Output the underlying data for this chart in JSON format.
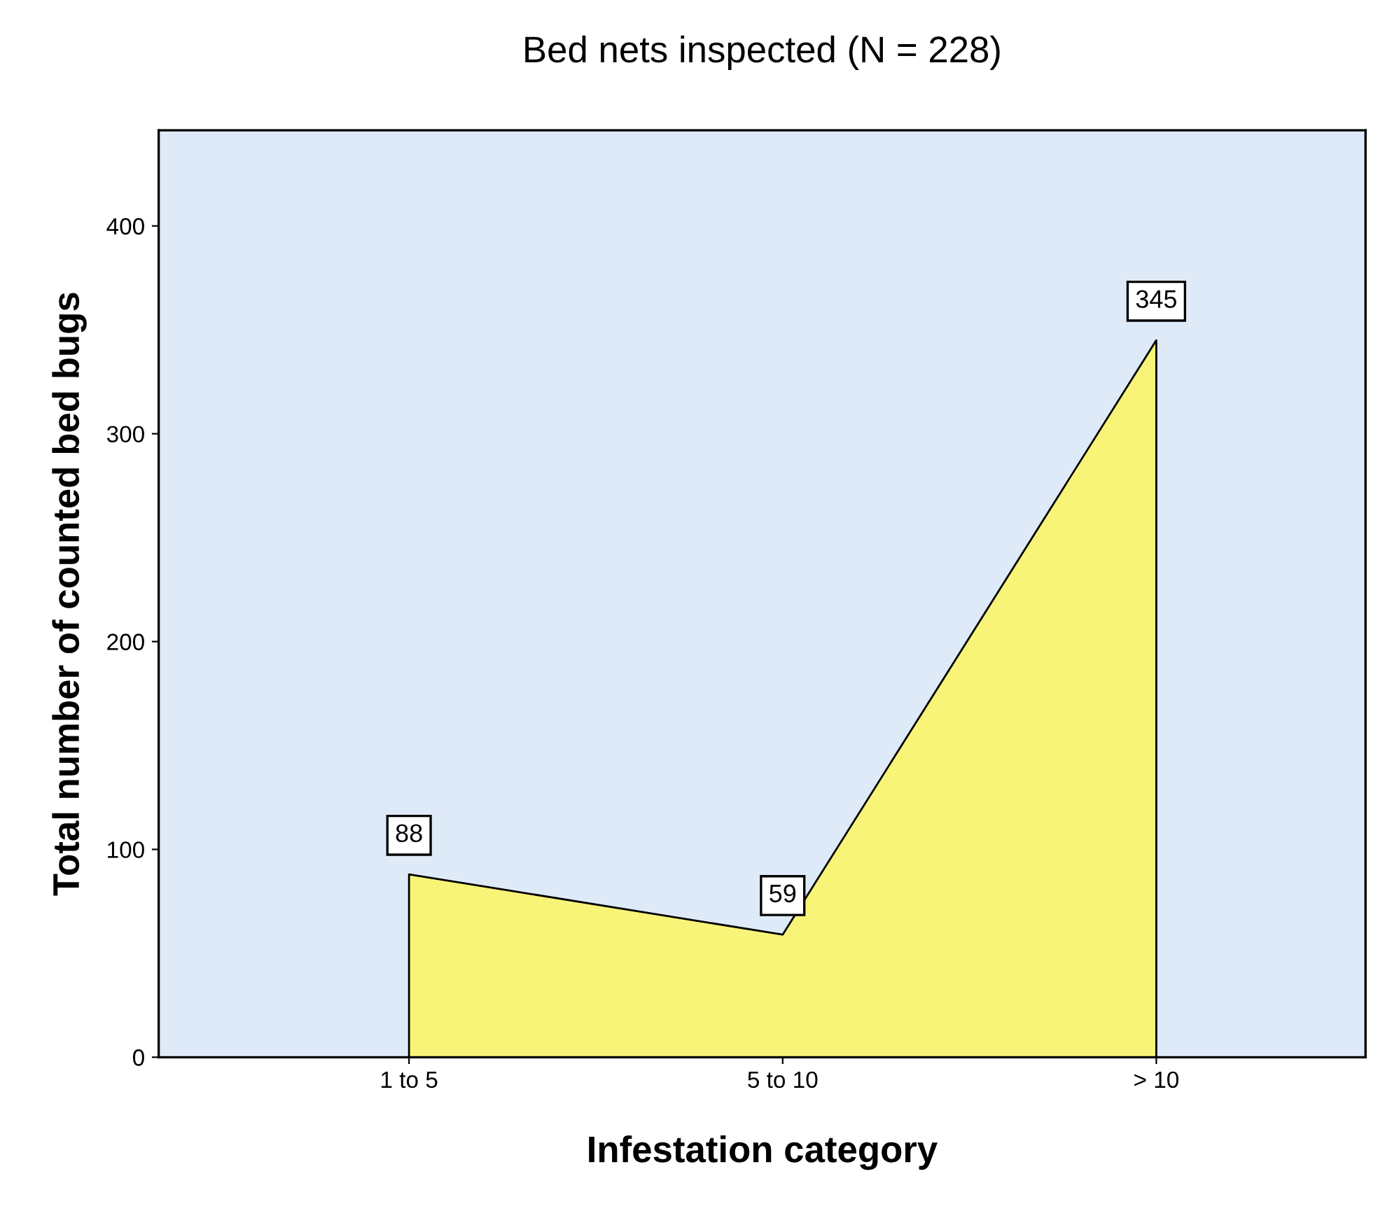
{
  "chart_data": {
    "type": "area",
    "title": "Bed nets inspected (N = 228)",
    "xlabel": "Infestation category",
    "ylabel": "Total number of counted bed bugs",
    "categories": [
      "1 to 5",
      "5 to 10",
      "> 10"
    ],
    "series": [
      {
        "color": "#f8f478",
        "values": [
          88,
          59,
          345
        ],
        "value_labels": [
          "88",
          "59",
          "345"
        ]
      }
    ],
    "ylim": [
      0,
      446
    ],
    "yticks": [
      0,
      100,
      200,
      300,
      400
    ],
    "grid": false,
    "legend": false
  }
}
